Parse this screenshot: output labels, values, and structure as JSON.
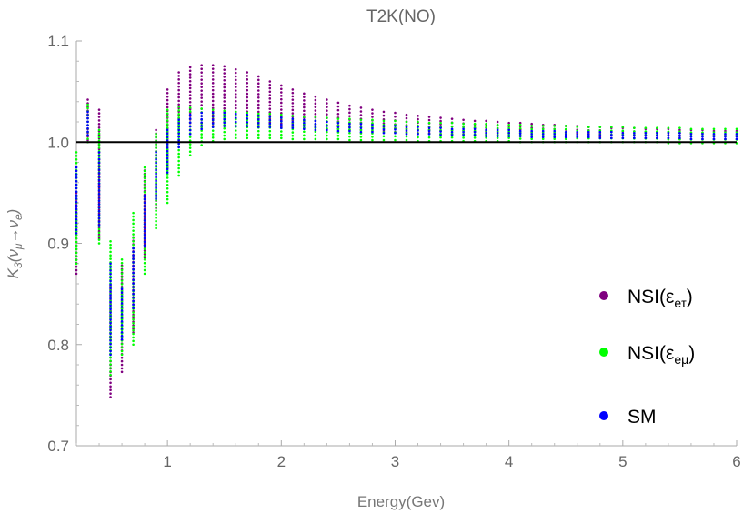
{
  "chart_data": {
    "type": "scatter",
    "title": "T2K(NO)",
    "xlabel": "Energy(Gev)",
    "ylabel": "K₃(νμ→νe)",
    "xlim": [
      0.2,
      6
    ],
    "ylim": [
      0.7,
      1.1
    ],
    "x_ticks": [
      "1",
      "2",
      "3",
      "4",
      "5",
      "6"
    ],
    "y_ticks": [
      "0.7",
      "0.8",
      "0.9",
      "1.0",
      "1.1"
    ],
    "reference_line": 1.0,
    "legend_position": "right",
    "colors": {
      "nsi_etau": "#800080",
      "nsi_emu": "#00ff00",
      "sm": "#0000ff",
      "reference": "#000000"
    },
    "x": [
      0.2,
      0.3,
      0.4,
      0.5,
      0.6,
      0.7,
      0.8,
      0.9,
      1.0,
      1.1,
      1.2,
      1.3,
      1.4,
      1.5,
      1.6,
      1.7,
      1.8,
      1.9,
      2.0,
      2.1,
      2.2,
      2.3,
      2.4,
      2.5,
      2.6,
      2.7,
      2.8,
      2.9,
      3.0,
      3.1,
      3.2,
      3.3,
      3.4,
      3.5,
      3.6,
      3.7,
      3.8,
      3.9,
      4.0,
      4.1,
      4.2,
      4.3,
      4.4,
      4.5,
      4.6,
      4.7,
      4.8,
      4.9,
      5.0,
      5.1,
      5.2,
      5.3,
      5.4,
      5.5,
      5.6,
      5.7,
      5.8,
      5.9,
      6.0
    ],
    "series": [
      {
        "name": "NSI(εeτ)",
        "label_text": "NSI(ε",
        "label_sub": "eτ",
        "color": "#800080",
        "y_min": [
          0.87,
          1.002,
          0.905,
          0.748,
          0.773,
          0.812,
          0.886,
          0.935,
          0.975,
          1.002,
          1.012,
          1.015,
          1.016,
          1.016,
          1.016,
          1.016,
          1.016,
          1.016,
          1.015,
          1.015,
          1.014,
          1.014,
          1.013,
          1.013,
          1.012,
          1.012,
          1.011,
          1.011,
          1.01,
          1.01,
          1.009,
          1.009,
          1.008,
          1.008,
          1.008,
          1.007,
          1.007,
          1.007,
          1.006,
          1.006,
          1.006,
          1.006,
          1.005,
          1.005,
          1.005,
          1.005,
          1.005,
          1.004,
          1.004,
          1.004,
          1.004,
          1.004,
          1.004,
          1.003,
          1.003,
          1.003,
          1.003,
          1.003,
          1.003
        ],
        "y_max": [
          0.95,
          1.042,
          1.032,
          0.858,
          0.878,
          0.906,
          0.972,
          1.012,
          1.052,
          1.069,
          1.074,
          1.076,
          1.076,
          1.075,
          1.072,
          1.069,
          1.065,
          1.06,
          1.056,
          1.052,
          1.048,
          1.045,
          1.042,
          1.039,
          1.036,
          1.034,
          1.032,
          1.03,
          1.029,
          1.027,
          1.026,
          1.025,
          1.024,
          1.023,
          1.022,
          1.021,
          1.021,
          1.02,
          1.019,
          1.019,
          1.018,
          1.017,
          1.017,
          1.016,
          1.016,
          1.015,
          1.015,
          1.014,
          1.014,
          1.014,
          1.013,
          1.013,
          1.013,
          1.012,
          1.012,
          1.012,
          1.011,
          1.011,
          1.011
        ]
      },
      {
        "name": "NSI(εeμ)",
        "label_text": "NSI(ε",
        "label_sub": "eμ",
        "color": "#00ff00",
        "y_min": [
          0.88,
          1.0,
          0.9,
          0.77,
          0.79,
          0.8,
          0.87,
          0.915,
          0.94,
          0.967,
          0.987,
          0.997,
          1.001,
          1.003,
          1.004,
          1.004,
          1.004,
          1.004,
          1.004,
          1.003,
          1.003,
          1.003,
          1.003,
          1.003,
          1.002,
          1.002,
          1.002,
          1.002,
          1.002,
          1.002,
          1.001,
          1.001,
          1.001,
          1.001,
          1.001,
          1.001,
          1.001,
          1.001,
          1.001,
          1.0,
          1.0,
          1.0,
          1.0,
          1.0,
          1.0,
          1.0,
          1.0,
          1.0,
          1.0,
          1.0,
          1.0,
          1.0,
          0.999,
          0.999,
          0.999,
          0.999,
          0.999,
          0.999,
          0.999
        ],
        "y_max": [
          0.99,
          1.037,
          1.012,
          0.902,
          0.884,
          0.93,
          0.975,
          1.008,
          1.032,
          1.035,
          1.034,
          1.033,
          1.032,
          1.031,
          1.03,
          1.029,
          1.028,
          1.028,
          1.027,
          1.026,
          1.025,
          1.025,
          1.024,
          1.023,
          1.023,
          1.022,
          1.022,
          1.021,
          1.021,
          1.02,
          1.02,
          1.019,
          1.019,
          1.019,
          1.018,
          1.018,
          1.018,
          1.017,
          1.017,
          1.017,
          1.016,
          1.016,
          1.016,
          1.016,
          1.015,
          1.015,
          1.015,
          1.015,
          1.015,
          1.014,
          1.014,
          1.014,
          1.014,
          1.014,
          1.013,
          1.013,
          1.013,
          1.013,
          1.013
        ]
      },
      {
        "name": "SM",
        "label_text": "SM",
        "label_sub": "",
        "color": "#0000ff",
        "y_min": [
          0.91,
          1.007,
          0.918,
          0.79,
          0.805,
          0.836,
          0.898,
          0.944,
          0.97,
          0.995,
          1.008,
          1.013,
          1.015,
          1.016,
          1.016,
          1.016,
          1.015,
          1.015,
          1.014,
          1.014,
          1.013,
          1.012,
          1.012,
          1.011,
          1.011,
          1.01,
          1.01,
          1.009,
          1.009,
          1.008,
          1.008,
          1.008,
          1.007,
          1.007,
          1.007,
          1.007,
          1.006,
          1.006,
          1.006,
          1.006,
          1.005,
          1.005,
          1.005,
          1.005,
          1.005,
          1.005,
          1.004,
          1.004,
          1.004,
          1.004,
          1.004,
          1.004,
          1.004,
          1.004,
          1.003,
          1.003,
          1.003,
          1.003,
          1.003
        ],
        "y_max": [
          0.975,
          1.03,
          0.99,
          0.88,
          0.855,
          0.895,
          0.947,
          0.99,
          1.012,
          1.022,
          1.027,
          1.029,
          1.029,
          1.029,
          1.028,
          1.027,
          1.026,
          1.025,
          1.024,
          1.023,
          1.022,
          1.021,
          1.02,
          1.019,
          1.018,
          1.018,
          1.017,
          1.016,
          1.016,
          1.015,
          1.015,
          1.014,
          1.014,
          1.013,
          1.013,
          1.013,
          1.012,
          1.012,
          1.012,
          1.011,
          1.011,
          1.011,
          1.011,
          1.01,
          1.01,
          1.01,
          1.01,
          1.01,
          1.009,
          1.009,
          1.009,
          1.009,
          1.009,
          1.009,
          1.008,
          1.008,
          1.008,
          1.008,
          1.008
        ]
      }
    ]
  }
}
